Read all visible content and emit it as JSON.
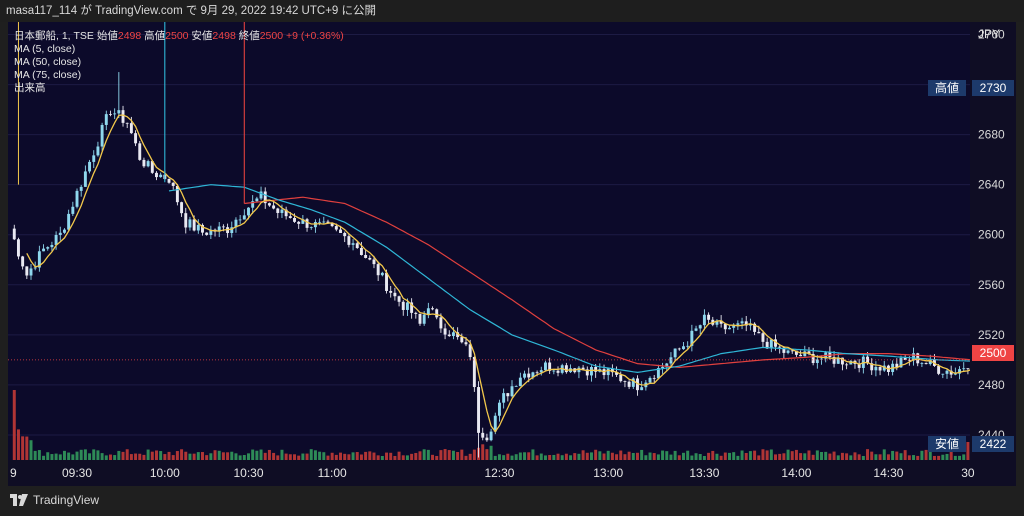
{
  "topbar": {
    "text": "masa117_114 が TradingView.com で 9月 29, 2022 19:42 UTC+9 に公開"
  },
  "legend": {
    "symbol": "日本郵船, 1, TSE",
    "open_label": "始値",
    "open": "2498",
    "high_label": "高値",
    "high": "2500",
    "low_label": "安値",
    "low": "2498",
    "close_label": "終値",
    "close": "2500",
    "change": "+9 (+0.36%)",
    "ma5": "MA (5, close)",
    "ma50": "MA (50, close)",
    "ma75": "MA (75, close)",
    "volume": "出来高"
  },
  "axis": {
    "currency": "JPY",
    "high_tag_label": "高値",
    "high_tag_value": "2730",
    "price_tag_value": "2500",
    "low_tag_label": "安値",
    "low_tag_value": "2422"
  },
  "branding": {
    "logo_text": "TradingView"
  },
  "colors": {
    "background": "#0c0a2a",
    "up": "#8fd8ee",
    "down": "#e9e9f2",
    "ma5": "#f2c84b",
    "ma50": "#2fb6d6",
    "ma75": "#e0403e",
    "vol_up": "#2e8b57",
    "vol_down": "#b03535"
  },
  "chart_data": {
    "type": "candlestick",
    "title": "",
    "x_ticks": [
      "9",
      "09:30",
      "10:00",
      "10:30",
      "11:00",
      "12:30",
      "13:00",
      "13:30",
      "14:00",
      "14:30",
      "30"
    ],
    "y_ticks": [
      2440,
      2480,
      2520,
      2560,
      2600,
      2640,
      2680,
      2720,
      2760
    ],
    "ylim": [
      2420,
      2770
    ],
    "price_trajectory": [
      [
        0,
        2605
      ],
      [
        4,
        2568
      ],
      [
        8,
        2588
      ],
      [
        12,
        2600
      ],
      [
        18,
        2650
      ],
      [
        24,
        2700
      ],
      [
        28,
        2690
      ],
      [
        31,
        2662
      ],
      [
        34,
        2650
      ],
      [
        38,
        2645
      ],
      [
        42,
        2610
      ],
      [
        46,
        2602
      ],
      [
        52,
        2605
      ],
      [
        56,
        2620
      ],
      [
        60,
        2630
      ],
      [
        64,
        2618
      ],
      [
        70,
        2610
      ],
      [
        76,
        2605
      ],
      [
        82,
        2595
      ],
      [
        88,
        2570
      ],
      [
        92,
        2550
      ],
      [
        96,
        2538
      ],
      [
        98,
        2528
      ],
      [
        100,
        2545
      ],
      [
        102,
        2530
      ],
      [
        106,
        2520
      ],
      [
        110,
        2505
      ],
      [
        112,
        2445
      ],
      [
        114,
        2440
      ],
      [
        118,
        2470
      ],
      [
        122,
        2488
      ],
      [
        128,
        2495
      ],
      [
        136,
        2494
      ],
      [
        144,
        2488
      ],
      [
        150,
        2480
      ],
      [
        156,
        2495
      ],
      [
        162,
        2515
      ],
      [
        166,
        2532
      ],
      [
        170,
        2525
      ],
      [
        176,
        2527
      ],
      [
        180,
        2515
      ],
      [
        186,
        2505
      ],
      [
        192,
        2502
      ],
      [
        198,
        2500
      ],
      [
        204,
        2498
      ],
      [
        210,
        2493
      ],
      [
        216,
        2502
      ],
      [
        222,
        2493
      ],
      [
        226,
        2490
      ],
      [
        230,
        2500
      ]
    ],
    "ma50_trajectory": [
      [
        38,
        2635
      ],
      [
        48,
        2640
      ],
      [
        56,
        2638
      ],
      [
        64,
        2628
      ],
      [
        72,
        2620
      ],
      [
        80,
        2610
      ],
      [
        90,
        2590
      ],
      [
        100,
        2565
      ],
      [
        110,
        2540
      ],
      [
        120,
        2520
      ],
      [
        130,
        2508
      ],
      [
        140,
        2495
      ],
      [
        150,
        2490
      ],
      [
        160,
        2495
      ],
      [
        170,
        2505
      ],
      [
        180,
        2510
      ],
      [
        190,
        2508
      ],
      [
        200,
        2505
      ],
      [
        210,
        2503
      ],
      [
        222,
        2500
      ],
      [
        230,
        2499
      ]
    ],
    "ma75_trajectory": [
      [
        56,
        2625
      ],
      [
        70,
        2630
      ],
      [
        80,
        2625
      ],
      [
        90,
        2610
      ],
      [
        100,
        2592
      ],
      [
        110,
        2570
      ],
      [
        120,
        2548
      ],
      [
        130,
        2525
      ],
      [
        140,
        2508
      ],
      [
        150,
        2497
      ],
      [
        160,
        2494
      ],
      [
        170,
        2497
      ],
      [
        180,
        2500
      ],
      [
        190,
        2502
      ],
      [
        200,
        2505
      ],
      [
        210,
        2505
      ],
      [
        220,
        2503
      ],
      [
        230,
        2500
      ]
    ],
    "current_price": 2500,
    "session_high": 2730,
    "session_low": 2422,
    "bars": 230
  }
}
